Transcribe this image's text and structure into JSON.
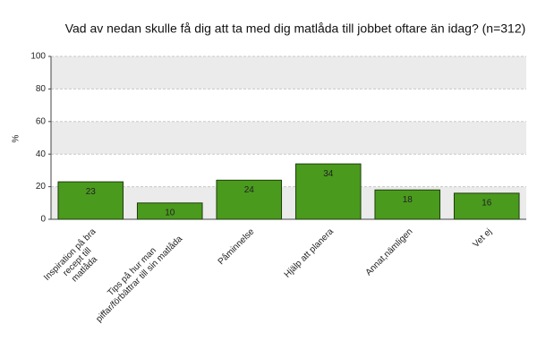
{
  "chart_data": {
    "type": "bar",
    "title": "Vad av nedan skulle få dig att ta med dig matlåda till jobbet oftare än idag? (n=312)",
    "ylabel": "%",
    "categories": [
      "Inspiration på bra\nrecept till\nmatlåda",
      "Tips på hur man\npiffar/förbättrar till sin matlåda",
      "Påminnelse",
      "Hjälp att planera",
      "Annat,nämligen",
      "Vet ej"
    ],
    "values": [
      23,
      10,
      24,
      34,
      18,
      16
    ],
    "color": "#4a9a1e",
    "ylim": [
      0,
      100
    ],
    "yticks": [
      0,
      20,
      40,
      60,
      80,
      100
    ],
    "grid": true
  }
}
